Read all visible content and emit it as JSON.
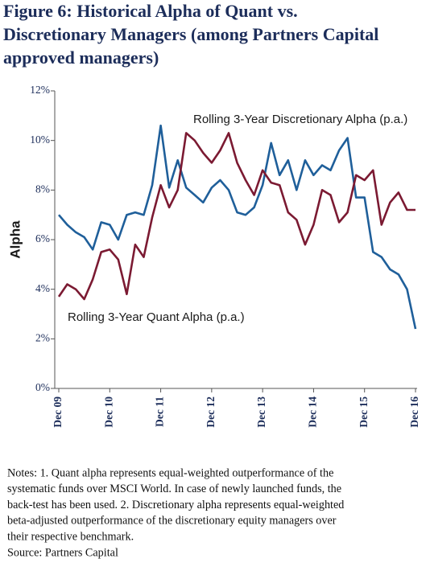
{
  "chart_data": {
    "type": "line",
    "title": [
      "Figure 6: Historical Alpha of Quant vs.",
      "Discretionary Managers (among Partners Capital",
      "approved managers)"
    ],
    "y_label": "Alpha",
    "categories": [
      "Dec 09",
      null,
      null,
      null,
      null,
      null,
      "Dec 10",
      null,
      null,
      null,
      null,
      null,
      "Dec 11",
      null,
      null,
      null,
      null,
      null,
      "Dec 12",
      null,
      null,
      null,
      null,
      null,
      "Dec 13",
      null,
      null,
      null,
      null,
      null,
      "Dec 14",
      null,
      null,
      null,
      null,
      null,
      "Dec 15",
      null,
      null,
      null,
      null,
      null,
      "Dec 16"
    ],
    "series": [
      {
        "name": "Rolling 3-Year Discretionary Alpha (p.a.)",
        "color": "#1f5f9a",
        "values": [
          7.0,
          6.6,
          6.3,
          6.1,
          5.6,
          6.7,
          6.6,
          6.0,
          7.0,
          7.1,
          7.0,
          8.2,
          10.6,
          8.1,
          9.2,
          8.1,
          7.8,
          7.5,
          8.1,
          8.4,
          8.0,
          7.1,
          7.0,
          7.3,
          8.2,
          9.9,
          8.6,
          9.2,
          8.0,
          9.2,
          8.6,
          9.0,
          8.8,
          9.6,
          10.1,
          7.7,
          7.7,
          5.5,
          5.3,
          4.8,
          4.6,
          4.0,
          2.4
        ]
      },
      {
        "name": "Rolling 3-Year Quant Alpha (p.a.)",
        "color": "#7b1a32",
        "values": [
          3.7,
          4.2,
          4.0,
          3.6,
          4.4,
          5.5,
          5.6,
          5.2,
          3.8,
          5.8,
          5.3,
          6.9,
          8.2,
          7.3,
          8.0,
          10.3,
          10.0,
          9.5,
          9.1,
          9.6,
          10.3,
          9.1,
          8.4,
          7.8,
          8.8,
          8.3,
          8.2,
          7.1,
          6.8,
          5.8,
          6.6,
          8.0,
          7.8,
          6.7,
          7.1,
          8.6,
          8.4,
          8.8,
          6.6,
          7.5,
          7.9,
          7.2,
          7.2
        ]
      }
    ],
    "ylim": [
      0,
      12
    ],
    "yticks": [
      {
        "value": 0,
        "label": "0%"
      },
      {
        "value": 2,
        "label": "2%"
      },
      {
        "value": 4,
        "label": "4%"
      },
      {
        "value": 6,
        "label": "6%"
      },
      {
        "value": 8,
        "label": "8%"
      },
      {
        "value": 10,
        "label": "10%"
      },
      {
        "value": 12,
        "label": "12%"
      }
    ],
    "grid": false,
    "notes": [
      "Notes: 1. Quant alpha represents equal-weighted outperformance of the",
      "systematic funds over MSCI World. In case of newly launched funds, the",
      "back-test has been used. 2. Discretionary alpha represents equal-weighted",
      "beta-adjusted outperformance of the discretionary equity managers over",
      "their respective benchmark.",
      "Source: Partners Capital"
    ]
  }
}
